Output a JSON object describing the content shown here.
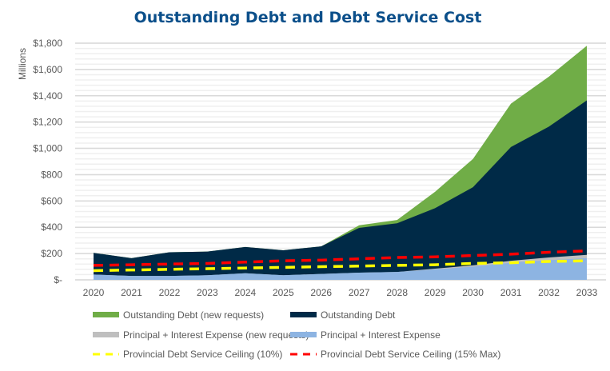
{
  "chart_data": {
    "type": "area",
    "title": "Outstanding Debt and Debt Service Cost",
    "ylabel": "Millions",
    "xlabel": "",
    "ylim": [
      0,
      1800
    ],
    "ytick_labels": [
      "$-",
      "$200",
      "$400",
      "$600",
      "$800",
      "$1,000",
      "$1,200",
      "$1,400",
      "$1,600",
      "$1,800"
    ],
    "yticks": [
      0,
      200,
      400,
      600,
      800,
      1000,
      1200,
      1400,
      1600,
      1800
    ],
    "categories": [
      "2020",
      "2021",
      "2022",
      "2023",
      "2024",
      "2025",
      "2026",
      "2027",
      "2028",
      "2029",
      "2030",
      "2031",
      "2032",
      "2033"
    ],
    "grid": true,
    "legend_placement": "bottom",
    "series": [
      {
        "name": "Outstanding Debt (new requests)",
        "kind": "area",
        "color": "#70ad47",
        "values": [
          205,
          165,
          210,
          215,
          250,
          225,
          255,
          415,
          455,
          670,
          920,
          1340,
          1545,
          1780
        ]
      },
      {
        "name": "Outstanding Debt",
        "kind": "area",
        "color": "#002a47",
        "values": [
          205,
          165,
          210,
          215,
          250,
          225,
          255,
          395,
          430,
          545,
          705,
          1010,
          1165,
          1365
        ]
      },
      {
        "name": "Principal + Interest Expense (new requests)",
        "kind": "area",
        "color": "#bfbfbf",
        "values": [
          40,
          30,
          30,
          35,
          50,
          35,
          45,
          55,
          60,
          85,
          110,
          145,
          170,
          190
        ]
      },
      {
        "name": "Principal + Interest Expense",
        "kind": "area",
        "color": "#8db4e2",
        "values": [
          40,
          30,
          30,
          35,
          50,
          35,
          45,
          55,
          60,
          80,
          100,
          130,
          150,
          165
        ]
      },
      {
        "name": "Provincial Debt Service Ceiling (10%)",
        "kind": "dashed-line",
        "color": "#ffff00",
        "values": [
          70,
          75,
          80,
          85,
          90,
          95,
          100,
          105,
          110,
          115,
          125,
          130,
          140,
          145
        ]
      },
      {
        "name": "Provincial Debt Service Ceiling (15% Max)",
        "kind": "dashed-line",
        "color": "#ff0000",
        "values": [
          110,
          115,
          120,
          125,
          135,
          145,
          150,
          160,
          170,
          175,
          185,
          195,
          210,
          220
        ]
      }
    ]
  }
}
